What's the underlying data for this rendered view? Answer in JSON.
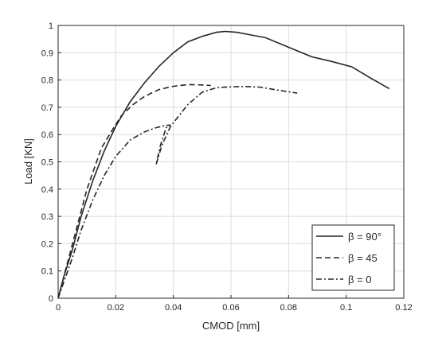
{
  "chart_data": {
    "type": "line",
    "xlabel": "CMOD [mm]",
    "ylabel": "Load [KN]",
    "xlim": [
      0,
      0.12
    ],
    "ylim": [
      0,
      1
    ],
    "xticks": [
      0,
      0.02,
      0.04,
      0.06,
      0.08,
      0.1,
      0.12
    ],
    "yticks": [
      0,
      0.1,
      0.2,
      0.3,
      0.4,
      0.5,
      0.6,
      0.7,
      0.8,
      0.9,
      1
    ],
    "xtick_labels": [
      "0",
      "0.02",
      "0.04",
      "0.06",
      "0.08",
      "0.1",
      "0.12"
    ],
    "ytick_labels": [
      "0",
      "0.1",
      "0.2",
      "0.3",
      "0.4",
      "0.5",
      "0.6",
      "0.7",
      "0.8",
      "0.9",
      "1"
    ],
    "grid": true,
    "legend_position": "bottom-right",
    "series": [
      {
        "name": "β = 90°",
        "line_style": "solid",
        "color": "#262626",
        "x": [
          0,
          0.002,
          0.005,
          0.008,
          0.012,
          0.016,
          0.02,
          0.025,
          0.03,
          0.035,
          0.04,
          0.045,
          0.05,
          0.055,
          0.058,
          0.062,
          0.067,
          0.072,
          0.08,
          0.088,
          0.095,
          0.102,
          0.108,
          0.115
        ],
        "y": [
          0,
          0.08,
          0.18,
          0.3,
          0.43,
          0.54,
          0.63,
          0.72,
          0.79,
          0.85,
          0.9,
          0.94,
          0.96,
          0.975,
          0.978,
          0.975,
          0.965,
          0.955,
          0.92,
          0.885,
          0.868,
          0.848,
          0.81,
          0.768
        ]
      },
      {
        "name": "β = 45",
        "line_style": "dashed",
        "color": "#262626",
        "x": [
          0,
          0.003,
          0.006,
          0.01,
          0.015,
          0.019,
          0.022,
          0.026,
          0.03,
          0.035,
          0.04,
          0.045,
          0.05,
          0.053
        ],
        "y": [
          0,
          0.12,
          0.24,
          0.4,
          0.55,
          0.62,
          0.67,
          0.71,
          0.74,
          0.765,
          0.777,
          0.783,
          0.782,
          0.78
        ]
      },
      {
        "name": "β = 0",
        "line_style": "dash-dot",
        "color": "#262626",
        "x": [
          0,
          0.002,
          0.005,
          0.008,
          0.012,
          0.016,
          0.02,
          0.025,
          0.03,
          0.034,
          0.037,
          0.039,
          0.0375,
          0.0355,
          0.034,
          0.036,
          0.039,
          0.042,
          0.045,
          0.05,
          0.055,
          0.06,
          0.065,
          0.07,
          0.075,
          0.083
        ],
        "y": [
          0,
          0.06,
          0.15,
          0.25,
          0.36,
          0.45,
          0.52,
          0.58,
          0.61,
          0.625,
          0.633,
          0.635,
          0.625,
          0.56,
          0.49,
          0.56,
          0.63,
          0.67,
          0.71,
          0.755,
          0.772,
          0.775,
          0.776,
          0.774,
          0.765,
          0.752
        ]
      }
    ]
  }
}
